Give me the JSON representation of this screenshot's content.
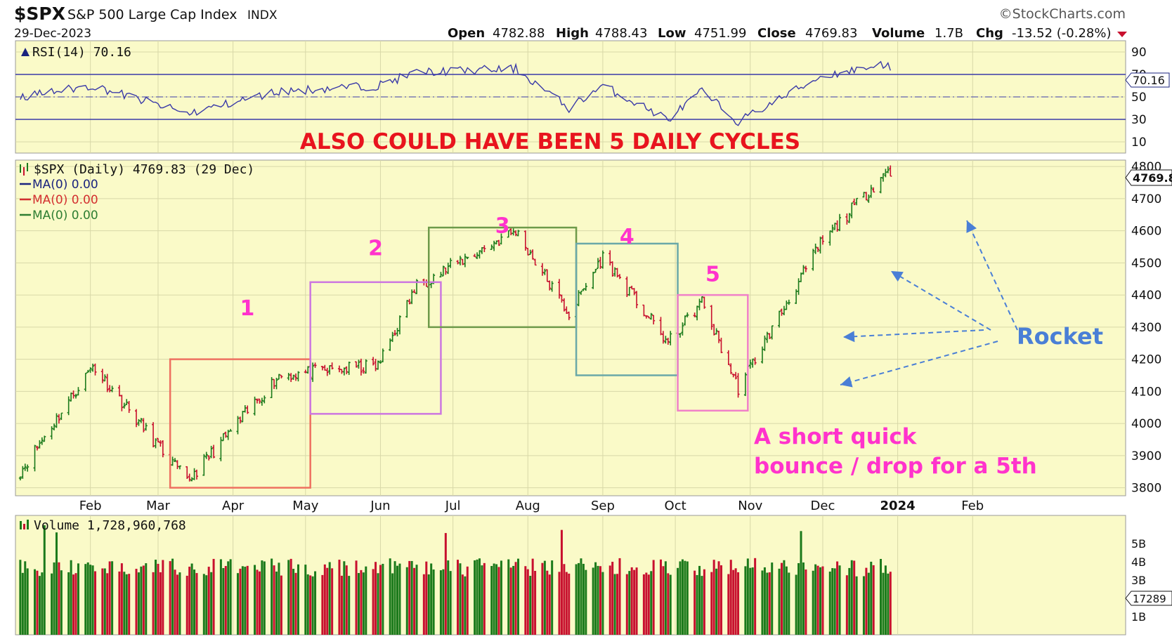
{
  "header": {
    "symbol": "$SPX",
    "name": "S&P 500 Large Cap Index",
    "exchange": "INDX",
    "date": "29-Dec-2023",
    "brand": "©StockCharts.com",
    "open_label": "Open",
    "open": "4782.88",
    "high_label": "High",
    "high": "4788.43",
    "low_label": "Low",
    "low": "4751.99",
    "close_label": "Close",
    "close": "4769.83",
    "volume_label": "Volume",
    "volume": "1.7B",
    "chg_label": "Chg",
    "chg": "-13.52 (-0.28%)"
  },
  "rsi": {
    "label": "RSI(14) 70.16",
    "current": "70.16",
    "ticks": [
      "90",
      "70",
      "50",
      "30",
      "10"
    ]
  },
  "price": {
    "legend": "$SPX (Daily) 4769.83 (29 Dec)",
    "ma_lines": [
      {
        "label": "MA(0) 0.00",
        "color": "#1a237e"
      },
      {
        "label": "MA(0) 0.00",
        "color": "#d32f2f"
      },
      {
        "label": "MA(0) 0.00",
        "color": "#2e7d32"
      }
    ],
    "last_tag": "4769.8",
    "ticks": [
      "4800",
      "4700",
      "4600",
      "4500",
      "4400",
      "4300",
      "4200",
      "4100",
      "4000",
      "3900",
      "3800"
    ]
  },
  "months": [
    "Feb",
    "Mar",
    "Apr",
    "May",
    "Jun",
    "Jul",
    "Aug",
    "Sep",
    "Oct",
    "Nov",
    "Dec",
    "2024",
    "Feb"
  ],
  "volume": {
    "label": "Volume 1,728,960,768",
    "ticks": [
      "5B",
      "4B",
      "3B",
      "1B"
    ],
    "last_tag": "17289"
  },
  "annotations": {
    "headline": "ALSO COULD HAVE BEEN 5 DAILY CYCLES",
    "cycles": [
      "1",
      "2",
      "3",
      "4",
      "5"
    ],
    "note_line1": "A short quick",
    "note_line2": "bounce / drop for a 5th",
    "rocket": "Rocket"
  },
  "colors": {
    "panel_bg": "#fafac8",
    "up": "#1b7a1b",
    "down": "#c8102e",
    "rsi_line": "#3a3aa8",
    "headline": "#e8141e",
    "cycle_label": "#ff33cc",
    "rocket": "#4a7fd6"
  },
  "chart_data": {
    "type": "line",
    "title": "$SPX S&P 500 Large Cap Index INDX",
    "x": [
      "2023-01-03",
      "2023-02-02",
      "2023-03-13",
      "2023-04-20",
      "2023-05-31",
      "2023-06-16",
      "2023-07-27",
      "2023-08-18",
      "2023-09-01",
      "2023-09-28",
      "2023-10-12",
      "2023-10-27",
      "2023-11-30",
      "2023-12-28",
      "2023-12-29"
    ],
    "series": [
      {
        "name": "$SPX (Daily)",
        "values": [
          3850,
          4180,
          3820,
          4150,
          4180,
          4430,
          4600,
          4340,
          4520,
          4250,
          4380,
          4110,
          4560,
          4790,
          4770
        ]
      }
    ],
    "rsi_values": [
      50,
      60,
      35,
      55,
      60,
      72,
      75,
      40,
      60,
      30,
      55,
      28,
      68,
      80,
      70
    ],
    "ylim": [
      3775,
      4820
    ],
    "rsi_ylim": [
      0,
      100
    ],
    "cycles": [
      {
        "label": "1",
        "start": "2023-03-06",
        "end": "2023-05-03",
        "low": 3800,
        "high": 4200
      },
      {
        "label": "2",
        "start": "2023-05-03",
        "end": "2023-06-26",
        "low": 4030,
        "high": 4440
      },
      {
        "label": "3",
        "start": "2023-06-21",
        "end": "2023-08-21",
        "low": 4300,
        "high": 4610
      },
      {
        "label": "4",
        "start": "2023-08-21",
        "end": "2023-10-02",
        "low": 4150,
        "high": 4560
      },
      {
        "label": "5",
        "start": "2023-10-02",
        "end": "2023-10-31",
        "low": 4040,
        "high": 4400
      }
    ],
    "grid": true
  }
}
